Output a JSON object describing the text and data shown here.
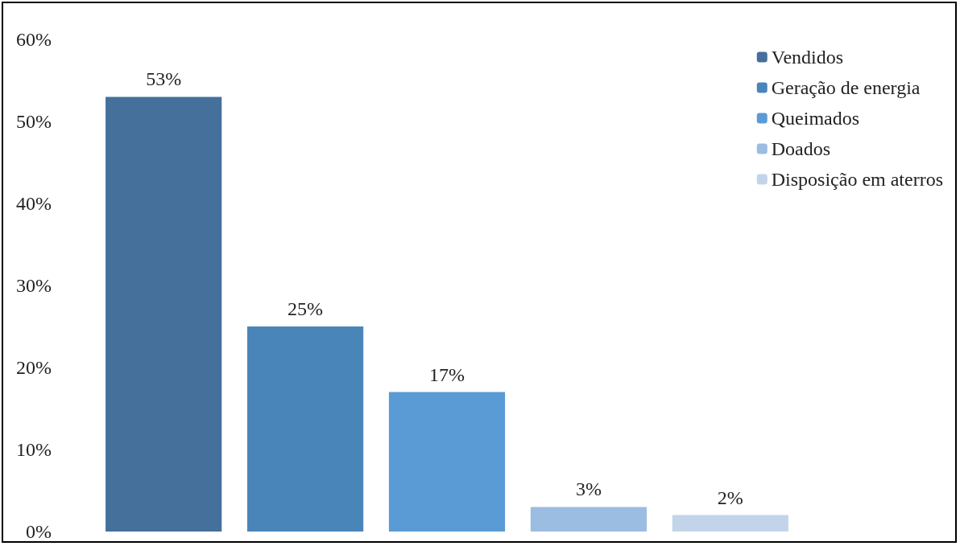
{
  "chart_data": {
    "type": "bar",
    "categories": [
      null
    ],
    "series": [
      {
        "name": "Vendidos",
        "color": "#44709b",
        "values": [
          53
        ],
        "value_labels": [
          "53%"
        ]
      },
      {
        "name": "Geração de energia",
        "color": "#4a85ba",
        "values": [
          25
        ],
        "value_labels": [
          "25%"
        ]
      },
      {
        "name": "Queimados",
        "color": "#5b9bd5",
        "values": [
          17
        ],
        "value_labels": [
          "17%"
        ]
      },
      {
        "name": "Doados",
        "color": "#9bbde2",
        "values": [
          3
        ],
        "value_labels": [
          "3%"
        ]
      },
      {
        "name": "Disposição em aterros",
        "color": "#c3d4ea",
        "values": [
          2
        ],
        "value_labels": [
          "2%"
        ]
      }
    ],
    "ylim": [
      0,
      60
    ],
    "yticks": [
      {
        "value": 0,
        "label": "0%"
      },
      {
        "value": 10,
        "label": "10%"
      },
      {
        "value": 20,
        "label": "20%"
      },
      {
        "value": 30,
        "label": "30%"
      },
      {
        "value": 40,
        "label": "40%"
      },
      {
        "value": 50,
        "label": "50%"
      },
      {
        "value": 60,
        "label": "60%"
      }
    ],
    "grid": false,
    "legend": "top right"
  }
}
